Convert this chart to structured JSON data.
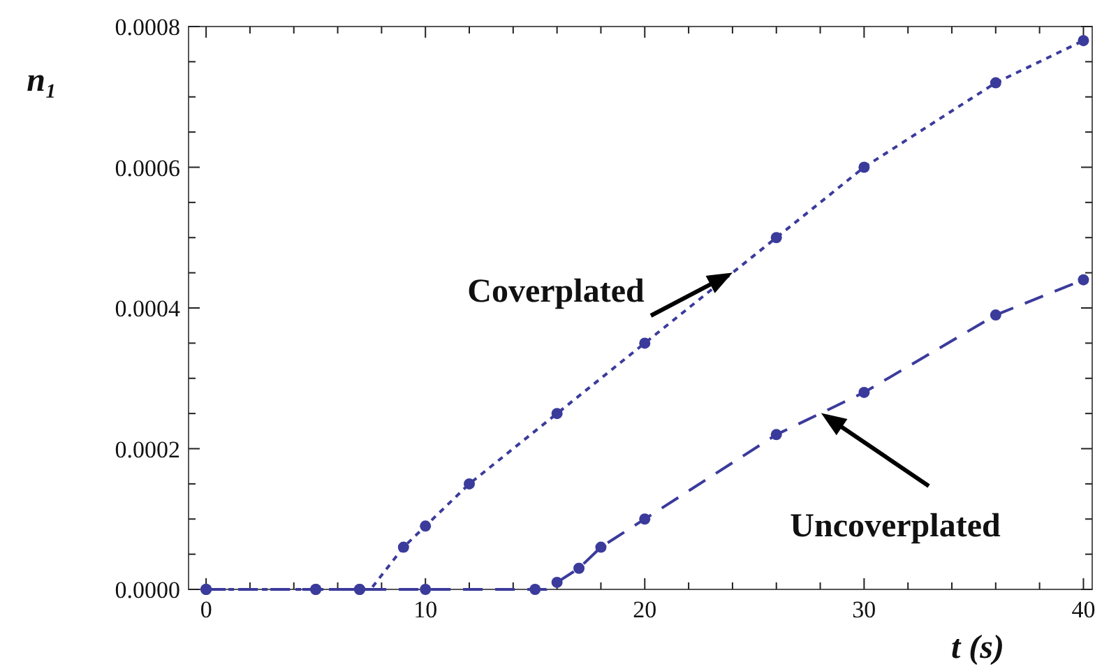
{
  "chart_data": {
    "type": "scatter",
    "xlabel": "t (s)",
    "ylabel": "n₁",
    "xlim": [
      -0.8,
      40.4
    ],
    "ylim": [
      0,
      0.0008
    ],
    "xticks": [
      0,
      {
        "value": 2,
        "label": null
      },
      {
        "value": 4,
        "label": null
      },
      {
        "value": 6,
        "label": null
      },
      {
        "value": 8,
        "label": null
      },
      10,
      {
        "value": 12,
        "label": null
      },
      {
        "value": 14,
        "label": null
      },
      {
        "value": 16,
        "label": null
      },
      {
        "value": 18,
        "label": null
      },
      20,
      {
        "value": 22,
        "label": null
      },
      {
        "value": 24,
        "label": null
      },
      {
        "value": 26,
        "label": null
      },
      {
        "value": 28,
        "label": null
      },
      30,
      {
        "value": 32,
        "label": null
      },
      {
        "value": 34,
        "label": null
      },
      {
        "value": 36,
        "label": null
      },
      {
        "value": 38,
        "label": null
      },
      40
    ],
    "yticks": [
      {
        "value": 0,
        "label": "0.0000"
      },
      {
        "value": 5e-05,
        "label": null
      },
      {
        "value": 0.0001,
        "label": null
      },
      {
        "value": 0.00015,
        "label": null
      },
      {
        "value": 0.0002,
        "label": "0.0002"
      },
      {
        "value": 0.00025,
        "label": null
      },
      {
        "value": 0.0003,
        "label": null
      },
      {
        "value": 0.00035,
        "label": null
      },
      {
        "value": 0.0004,
        "label": "0.0004"
      },
      {
        "value": 0.00045,
        "label": null
      },
      {
        "value": 0.0005,
        "label": null
      },
      {
        "value": 0.00055,
        "label": null
      },
      {
        "value": 0.0006,
        "label": "0.0006"
      },
      {
        "value": 0.00065,
        "label": null
      },
      {
        "value": 0.0007,
        "label": null
      },
      {
        "value": 0.00075,
        "label": null
      },
      {
        "value": 0.0008,
        "label": "0.0008"
      }
    ],
    "grid": false,
    "legend": false,
    "marker": "circle",
    "series": [
      {
        "color": "#3b3b9c",
        "x": [
          0,
          5,
          7,
          9,
          10,
          12,
          16,
          20,
          26,
          30,
          36,
          40
        ],
        "values": [
          0,
          0,
          0,
          6e-05,
          9e-05,
          0.00015,
          0.00025,
          0.00035,
          0.0005,
          0.0006,
          0.00072,
          0.00078
        ]
      },
      {
        "color": "#3b3b9c",
        "x": [
          0,
          5,
          7,
          10,
          15,
          16,
          17,
          18,
          20,
          26,
          30,
          36,
          40
        ],
        "values": [
          0,
          0,
          0,
          0,
          0,
          1e-05,
          3e-05,
          6e-05,
          0.0001,
          0.00022,
          0.00028,
          0.00039,
          0.00044
        ]
      },
      {
        "type": "line",
        "name": "Coverplated",
        "color": "#3b3b9c",
        "line_style": "dotted",
        "marker": "none",
        "x": [
          0,
          7.5,
          9,
          10,
          12,
          16,
          20,
          26,
          30,
          36,
          40
        ],
        "values": [
          0,
          0,
          6e-05,
          9e-05,
          0.00015,
          0.00025,
          0.00035,
          0.0005,
          0.0006,
          0.00072,
          0.00078
        ]
      },
      {
        "type": "line",
        "name": "Uncoverplated",
        "color": "#3b3b9c",
        "line_style": "dashed",
        "marker": "none",
        "x": [
          0,
          15.5,
          17,
          18,
          20,
          26,
          30,
          36,
          40
        ],
        "values": [
          0,
          0,
          3e-05,
          6e-05,
          0.0001,
          0.00022,
          0.00028,
          0.00039,
          0.00044
        ]
      }
    ]
  }
}
